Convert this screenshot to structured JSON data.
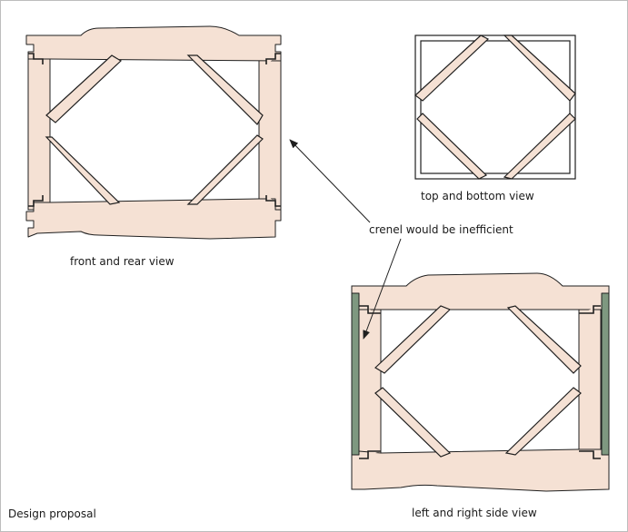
{
  "labels": {
    "front": "front and rear view",
    "top": "top and bottom view",
    "side": "left and right side view",
    "note": "crenel would be inefficient",
    "footer": "Design proposal"
  },
  "colors": {
    "wood": "#f5e1d4",
    "green_strip": "#7e9880",
    "stroke": "#1f1f1f"
  }
}
